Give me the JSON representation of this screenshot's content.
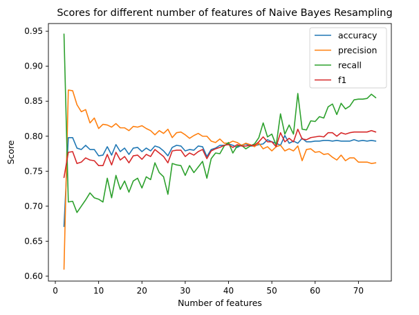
{
  "chart_data": {
    "type": "line",
    "title": "Scores for different number of features of Naive Bayes Resampling",
    "xlabel": "Number of features",
    "ylabel": "Score",
    "xlim": [
      -1.6,
      77.6
    ],
    "ylim": [
      0.593,
      0.961
    ],
    "xticks": [
      0,
      10,
      20,
      30,
      40,
      50,
      60,
      70
    ],
    "yticks": [
      "0.60",
      "0.65",
      "0.70",
      "0.75",
      "0.80",
      "0.85",
      "0.90",
      "0.95"
    ],
    "grid": false,
    "legend_position": "upper right",
    "x": [
      2,
      3,
      4,
      5,
      6,
      7,
      8,
      9,
      10,
      11,
      12,
      13,
      14,
      15,
      16,
      17,
      18,
      19,
      20,
      21,
      22,
      23,
      24,
      25,
      26,
      27,
      28,
      29,
      30,
      31,
      32,
      33,
      34,
      35,
      36,
      37,
      38,
      39,
      40,
      41,
      42,
      43,
      44,
      45,
      46,
      47,
      48,
      49,
      50,
      51,
      52,
      53,
      54,
      55,
      56,
      57,
      58,
      59,
      60,
      61,
      62,
      63,
      64,
      65,
      66,
      67,
      68,
      69,
      70,
      71,
      72,
      73,
      74
    ],
    "series": [
      {
        "name": "accuracy",
        "color": "#1f77b4",
        "values": [
          0.671,
          0.798,
          0.798,
          0.783,
          0.781,
          0.787,
          0.781,
          0.781,
          0.772,
          0.773,
          0.785,
          0.773,
          0.788,
          0.778,
          0.783,
          0.774,
          0.783,
          0.784,
          0.778,
          0.783,
          0.779,
          0.786,
          0.784,
          0.779,
          0.772,
          0.784,
          0.787,
          0.786,
          0.779,
          0.781,
          0.78,
          0.786,
          0.785,
          0.771,
          0.781,
          0.783,
          0.787,
          0.787,
          0.789,
          0.787,
          0.784,
          0.787,
          0.789,
          0.786,
          0.786,
          0.788,
          0.789,
          0.795,
          0.792,
          0.79,
          0.787,
          0.801,
          0.79,
          0.793,
          0.79,
          0.797,
          0.792,
          0.792,
          0.793,
          0.793,
          0.794,
          0.794,
          0.793,
          0.794,
          0.793,
          0.793,
          0.793,
          0.795,
          0.793,
          0.794,
          0.793,
          0.794,
          0.793
        ]
      },
      {
        "name": "precision",
        "color": "#ff7f0e",
        "values": [
          0.61,
          0.866,
          0.865,
          0.845,
          0.835,
          0.838,
          0.819,
          0.826,
          0.811,
          0.817,
          0.816,
          0.813,
          0.818,
          0.812,
          0.812,
          0.808,
          0.814,
          0.813,
          0.815,
          0.811,
          0.808,
          0.802,
          0.808,
          0.804,
          0.81,
          0.798,
          0.805,
          0.806,
          0.802,
          0.797,
          0.801,
          0.804,
          0.8,
          0.8,
          0.793,
          0.791,
          0.796,
          0.79,
          0.79,
          0.793,
          0.791,
          0.787,
          0.79,
          0.788,
          0.785,
          0.79,
          0.782,
          0.785,
          0.779,
          0.785,
          0.787,
          0.779,
          0.782,
          0.779,
          0.786,
          0.765,
          0.781,
          0.782,
          0.777,
          0.778,
          0.774,
          0.775,
          0.77,
          0.766,
          0.773,
          0.765,
          0.769,
          0.769,
          0.763,
          0.763,
          0.763,
          0.761,
          0.762
        ]
      },
      {
        "name": "recall",
        "color": "#2ca02c",
        "values": [
          0.946,
          0.706,
          0.707,
          0.691,
          0.7,
          0.709,
          0.719,
          0.712,
          0.71,
          0.706,
          0.74,
          0.712,
          0.744,
          0.724,
          0.736,
          0.72,
          0.736,
          0.74,
          0.726,
          0.742,
          0.738,
          0.762,
          0.748,
          0.742,
          0.717,
          0.761,
          0.759,
          0.758,
          0.744,
          0.758,
          0.748,
          0.756,
          0.764,
          0.74,
          0.768,
          0.776,
          0.775,
          0.786,
          0.791,
          0.776,
          0.786,
          0.787,
          0.782,
          0.786,
          0.789,
          0.798,
          0.819,
          0.799,
          0.803,
          0.787,
          0.832,
          0.803,
          0.816,
          0.803,
          0.861,
          0.81,
          0.809,
          0.822,
          0.821,
          0.828,
          0.826,
          0.842,
          0.846,
          0.831,
          0.847,
          0.839,
          0.843,
          0.852,
          0.853,
          0.853,
          0.854,
          0.86,
          0.855
        ]
      },
      {
        "name": "f1",
        "color": "#d62728",
        "values": [
          0.741,
          0.777,
          0.778,
          0.761,
          0.763,
          0.769,
          0.766,
          0.765,
          0.758,
          0.758,
          0.774,
          0.759,
          0.777,
          0.766,
          0.771,
          0.762,
          0.772,
          0.773,
          0.767,
          0.774,
          0.771,
          0.781,
          0.776,
          0.771,
          0.762,
          0.779,
          0.78,
          0.78,
          0.771,
          0.776,
          0.773,
          0.778,
          0.781,
          0.768,
          0.779,
          0.782,
          0.784,
          0.787,
          0.788,
          0.784,
          0.788,
          0.786,
          0.786,
          0.787,
          0.787,
          0.792,
          0.799,
          0.792,
          0.792,
          0.785,
          0.805,
          0.792,
          0.797,
          0.792,
          0.81,
          0.796,
          0.795,
          0.798,
          0.799,
          0.8,
          0.799,
          0.805,
          0.805,
          0.8,
          0.805,
          0.803,
          0.805,
          0.806,
          0.806,
          0.806,
          0.806,
          0.808,
          0.806
        ]
      }
    ]
  }
}
